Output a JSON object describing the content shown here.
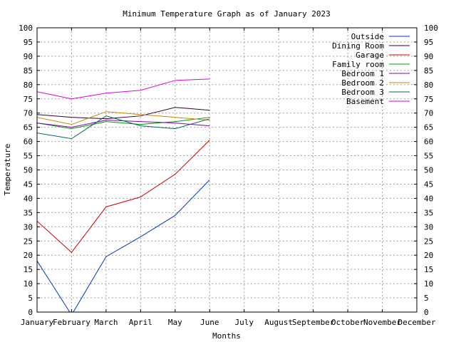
{
  "chart_data": {
    "type": "line",
    "title": "Minimum Temperature Graph as of January 2023",
    "xlabel": "Months",
    "ylabel": "Temperature",
    "categories": [
      "January",
      "February",
      "March",
      "April",
      "May",
      "June",
      "July",
      "August",
      "September",
      "October",
      "November",
      "December"
    ],
    "ylim": [
      0,
      100
    ],
    "y_ticks": [
      0,
      5,
      10,
      15,
      20,
      25,
      30,
      35,
      40,
      45,
      50,
      55,
      60,
      65,
      70,
      75,
      80,
      85,
      90,
      95,
      100
    ],
    "grid": true,
    "legend_position": "top-right",
    "right_axis_mirrored": true,
    "series": [
      {
        "name": "Outside",
        "color": "#0033cc",
        "values": [
          18.0,
          -1.0,
          19.5,
          26.5,
          34.0,
          46.5,
          null,
          null,
          null,
          null,
          null,
          null
        ]
      },
      {
        "name": "Dining Room",
        "color": "#330033",
        "values": [
          69.5,
          68.5,
          68.0,
          69.0,
          72.0,
          71.0,
          null,
          null,
          null,
          null,
          null,
          null
        ]
      },
      {
        "name": "Garage",
        "color": "#cc0000",
        "values": [
          32.0,
          21.0,
          37.0,
          40.5,
          48.5,
          60.5,
          null,
          null,
          null,
          null,
          null,
          null
        ]
      },
      {
        "name": "Family room",
        "color": "#009900",
        "values": [
          66.5,
          64.5,
          67.0,
          66.0,
          67.0,
          68.5,
          null,
          null,
          null,
          null,
          null,
          null
        ]
      },
      {
        "name": "Bedroom 1",
        "color": "#8800aa",
        "values": [
          66.5,
          65.0,
          67.5,
          67.0,
          66.5,
          65.5,
          null,
          null,
          null,
          null,
          null,
          null
        ]
      },
      {
        "name": "Bedroom 2",
        "color": "#cc8800",
        "values": [
          68.5,
          66.0,
          70.5,
          69.5,
          68.5,
          67.5,
          null,
          null,
          null,
          null,
          null,
          null
        ]
      },
      {
        "name": "Bedroom 3",
        "color": "#006666",
        "values": [
          63.0,
          61.0,
          69.0,
          65.5,
          64.5,
          68.0,
          null,
          null,
          null,
          null,
          null,
          null
        ]
      },
      {
        "name": "Basement",
        "color": "#dd00dd",
        "values": [
          77.5,
          75.0,
          77.0,
          78.0,
          81.5,
          82.0,
          null,
          null,
          null,
          null,
          null,
          null
        ]
      }
    ]
  }
}
